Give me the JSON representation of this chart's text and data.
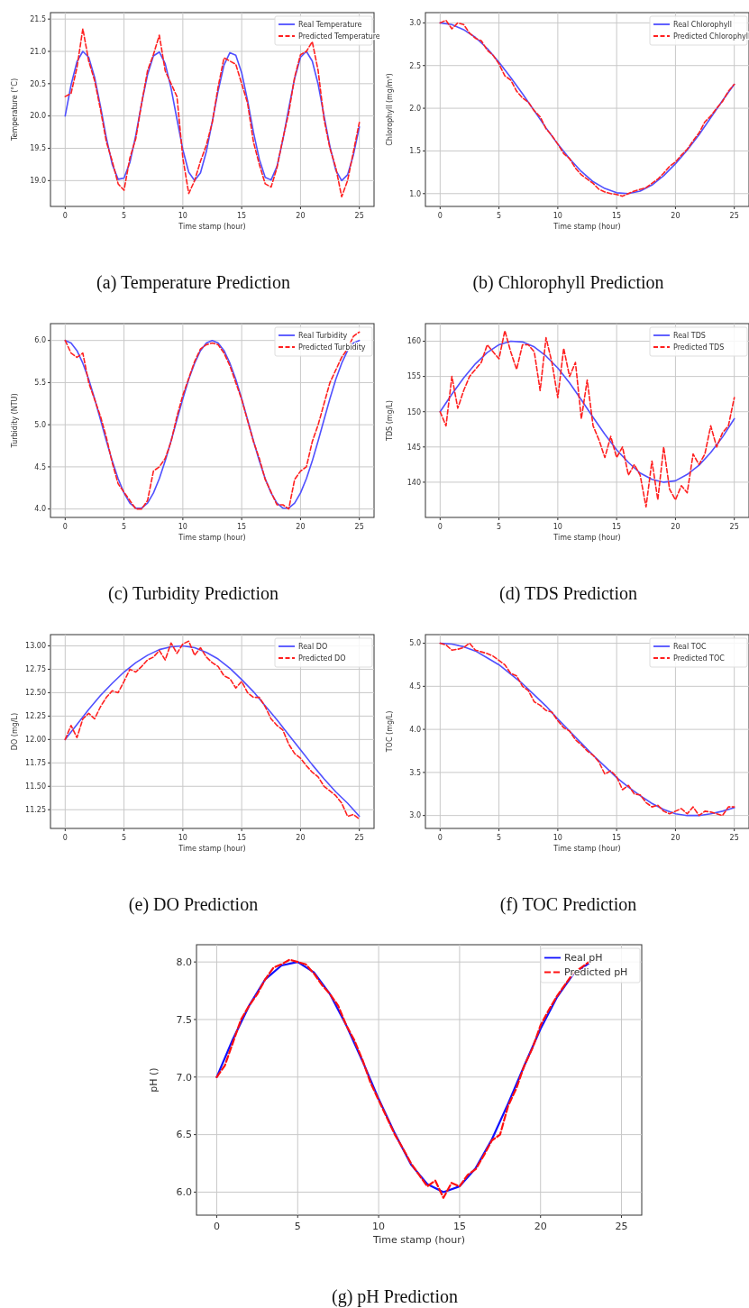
{
  "chart_data": [
    {
      "type": "line",
      "title": "(a)  Temperature Prediction",
      "xlabel": "Time stamp (hour)",
      "ylabel": "Temperature (°C)",
      "xlim": [
        -1.25,
        26.25
      ],
      "xticks": [
        0,
        5,
        10,
        15,
        20,
        25
      ],
      "ylim": [
        18.6,
        21.6
      ],
      "yticks": [
        {
          "value": 19,
          "label": "19.0"
        },
        19.5,
        {
          "value": 20,
          "label": "20.0"
        },
        20.5,
        {
          "value": 21,
          "label": "21.0"
        },
        21.5
      ],
      "grid": true,
      "legend": "top right",
      "series": [
        {
          "name": "Real Temperature",
          "color": "#5050ff",
          "line_style": "solid",
          "x": [
            0,
            0.5,
            1,
            1.5,
            2,
            2.5,
            3,
            3.5,
            4,
            4.5,
            5,
            5.5,
            6,
            6.5,
            7,
            7.5,
            8,
            8.5,
            9,
            9.5,
            10,
            10.5,
            11,
            11.5,
            12,
            12.5,
            13,
            13.5,
            14,
            14.5,
            15,
            15.5,
            16,
            16.5,
            17,
            17.5,
            18,
            18.5,
            19,
            19.5,
            20,
            20.5,
            21,
            21.5,
            22,
            22.5,
            23,
            23.5,
            24,
            24.5,
            25
          ],
          "values": [
            20.0,
            20.48,
            20.84,
            21.0,
            20.91,
            20.6,
            20.15,
            19.66,
            19.25,
            19.02,
            19.04,
            19.28,
            19.7,
            20.2,
            20.64,
            20.93,
            20.99,
            20.81,
            20.43,
            19.95,
            19.48,
            19.13,
            19.0,
            19.12,
            19.45,
            19.91,
            20.39,
            20.79,
            20.98,
            20.94,
            20.67,
            20.24,
            19.75,
            19.33,
            19.05,
            19.01,
            19.22,
            19.63,
            20.12,
            20.58,
            20.91,
            21.0,
            20.85,
            20.49,
            20.0,
            19.53,
            19.16,
            19.0,
            19.09,
            19.4,
            19.83
          ]
        },
        {
          "name": "Predicted Temperature",
          "color": "#ff2020",
          "line_style": "dashed",
          "x": [
            0,
            0.5,
            1,
            1.5,
            2,
            2.5,
            3,
            3.5,
            4,
            4.5,
            5,
            5.5,
            6,
            6.5,
            7,
            7.5,
            8,
            8.5,
            9,
            9.5,
            10,
            10.5,
            11,
            11.5,
            12,
            12.5,
            13,
            13.5,
            14,
            14.5,
            15,
            15.5,
            16,
            16.5,
            17,
            17.5,
            18,
            18.5,
            19,
            19.5,
            20,
            20.5,
            21,
            21.5,
            22,
            22.5,
            23,
            23.5,
            24,
            24.5,
            25
          ],
          "values": [
            20.3,
            20.35,
            20.75,
            21.35,
            20.85,
            20.55,
            20.1,
            19.6,
            19.3,
            18.95,
            18.85,
            19.35,
            19.65,
            20.2,
            20.7,
            20.95,
            21.25,
            20.7,
            20.5,
            20.3,
            19.35,
            18.8,
            19.0,
            19.3,
            19.55,
            19.9,
            20.45,
            20.9,
            20.85,
            20.8,
            20.5,
            20.2,
            19.6,
            19.25,
            18.95,
            18.9,
            19.2,
            19.65,
            20.05,
            20.6,
            20.95,
            21.0,
            21.15,
            20.7,
            19.95,
            19.5,
            19.2,
            18.75,
            19.0,
            19.45,
            19.9
          ]
        }
      ]
    },
    {
      "type": "line",
      "title": "(b) Chlorophyll Prediction",
      "xlabel": "Time stamp (hour)",
      "ylabel": "Chlorophyll (mg/m³)",
      "xlim": [
        -1.25,
        26.25
      ],
      "xticks": [
        0,
        5,
        10,
        15,
        20,
        25
      ],
      "ylim": [
        0.85,
        3.12
      ],
      "yticks": [
        {
          "value": 1,
          "label": "1.0"
        },
        1.5,
        {
          "value": 2,
          "label": "2.0"
        },
        2.5,
        {
          "value": 3,
          "label": "3.0"
        }
      ],
      "grid": true,
      "legend": "top right",
      "series": [
        {
          "name": "Real Chlorophyll",
          "color": "#5050ff",
          "line_style": "solid",
          "x": [
            0,
            1,
            2,
            3,
            4,
            5,
            6,
            7,
            8,
            9,
            10,
            11,
            12,
            13,
            14,
            15,
            16,
            17,
            18,
            19,
            20,
            21,
            22,
            23,
            24,
            25
          ],
          "values": [
            3.0,
            2.98,
            2.92,
            2.83,
            2.7,
            2.54,
            2.36,
            2.17,
            1.97,
            1.77,
            1.58,
            1.41,
            1.26,
            1.14,
            1.06,
            1.01,
            1.0,
            1.03,
            1.1,
            1.21,
            1.35,
            1.51,
            1.69,
            1.89,
            2.09,
            2.28
          ]
        },
        {
          "name": "Predicted Chlorophyll",
          "color": "#ff2020",
          "line_style": "dashed",
          "x": [
            0,
            0.5,
            1,
            1.5,
            2,
            2.5,
            3,
            3.5,
            4,
            4.5,
            5,
            5.5,
            6,
            6.5,
            7,
            7.5,
            8,
            8.5,
            9,
            9.5,
            10,
            10.5,
            11,
            11.5,
            12,
            12.5,
            13,
            13.5,
            14,
            14.5,
            15,
            15.5,
            16,
            16.5,
            17,
            17.5,
            18,
            18.5,
            19,
            19.5,
            20,
            20.5,
            21,
            21.5,
            22,
            22.5,
            23,
            23.5,
            24,
            24.5,
            25
          ],
          "values": [
            3.0,
            3.03,
            2.93,
            3.0,
            2.98,
            2.88,
            2.82,
            2.79,
            2.68,
            2.62,
            2.52,
            2.38,
            2.33,
            2.2,
            2.12,
            2.07,
            1.97,
            1.9,
            1.76,
            1.68,
            1.58,
            1.47,
            1.41,
            1.3,
            1.22,
            1.17,
            1.12,
            1.05,
            1.02,
            1.0,
            0.99,
            0.97,
            1.0,
            1.03,
            1.05,
            1.07,
            1.12,
            1.17,
            1.24,
            1.32,
            1.37,
            1.45,
            1.52,
            1.62,
            1.71,
            1.84,
            1.91,
            2.0,
            2.08,
            2.2,
            2.28
          ]
        }
      ]
    },
    {
      "type": "line",
      "title": "(c) Turbidity Prediction",
      "xlabel": "Time stamp (hour)",
      "ylabel": "Turbidity (NTU)",
      "xlim": [
        -1.25,
        26.25
      ],
      "xticks": [
        0,
        5,
        10,
        15,
        20,
        25
      ],
      "ylim": [
        3.9,
        6.2
      ],
      "yticks": [
        {
          "value": 4,
          "label": "4.0"
        },
        4.5,
        {
          "value": 5,
          "label": "5.0"
        },
        5.5,
        {
          "value": 6,
          "label": "6.0"
        }
      ],
      "grid": true,
      "legend": "top right",
      "series": [
        {
          "name": "Real Turbidity",
          "color": "#5050ff",
          "line_style": "solid",
          "x": [
            0,
            0.5,
            1,
            1.5,
            2,
            2.5,
            3,
            3.5,
            4,
            4.5,
            5,
            5.5,
            6,
            6.5,
            7,
            7.5,
            8,
            8.5,
            9,
            9.5,
            10,
            10.5,
            11,
            11.5,
            12,
            12.5,
            13,
            13.5,
            14,
            14.5,
            15,
            15.5,
            16,
            16.5,
            17,
            17.5,
            18,
            18.5,
            19,
            19.5,
            20,
            20.5,
            21,
            21.5,
            22,
            22.5,
            23,
            23.5,
            24,
            24.5,
            25
          ],
          "values": [
            6.0,
            5.97,
            5.88,
            5.73,
            5.54,
            5.31,
            5.06,
            4.81,
            4.57,
            4.36,
            4.19,
            4.07,
            4.01,
            4.01,
            4.07,
            4.19,
            4.36,
            4.57,
            4.81,
            5.06,
            5.31,
            5.54,
            5.73,
            5.88,
            5.97,
            6.0,
            5.97,
            5.88,
            5.73,
            5.54,
            5.31,
            5.06,
            4.81,
            4.57,
            4.36,
            4.19,
            4.07,
            4.01,
            4.01,
            4.07,
            4.19,
            4.36,
            4.57,
            4.81,
            5.06,
            5.31,
            5.54,
            5.73,
            5.88,
            5.97,
            6.0
          ]
        },
        {
          "name": "Predicted Turbidity",
          "color": "#ff2020",
          "line_style": "dashed",
          "x": [
            0,
            0.5,
            1,
            1.5,
            2,
            2.5,
            3,
            3.5,
            4,
            4.5,
            5,
            5.5,
            6,
            6.5,
            7,
            7.5,
            8,
            8.5,
            9,
            9.5,
            10,
            10.5,
            11,
            11.5,
            12,
            12.5,
            13,
            13.5,
            14,
            14.5,
            15,
            15.5,
            16,
            16.5,
            17,
            17.5,
            18,
            18.5,
            19,
            19.5,
            20,
            20.5,
            21,
            21.5,
            22,
            22.5,
            23,
            23.5,
            24,
            24.5,
            25
          ],
          "values": [
            6.0,
            5.85,
            5.8,
            5.85,
            5.5,
            5.3,
            5.1,
            4.85,
            4.55,
            4.3,
            4.2,
            4.1,
            4.0,
            4.0,
            4.1,
            4.45,
            4.5,
            4.6,
            4.8,
            5.1,
            5.35,
            5.55,
            5.75,
            5.9,
            5.95,
            5.97,
            5.95,
            5.85,
            5.7,
            5.5,
            5.3,
            5.05,
            4.8,
            4.6,
            4.35,
            4.2,
            4.05,
            4.05,
            4.0,
            4.35,
            4.45,
            4.5,
            4.8,
            5.0,
            5.25,
            5.5,
            5.65,
            5.8,
            5.9,
            6.05,
            6.1
          ]
        }
      ]
    },
    {
      "type": "line",
      "title": "(d) TDS Prediction",
      "xlabel": "Time stamp (hour)",
      "ylabel": "TDS (mg/L)",
      "xlim": [
        -1.25,
        26.25
      ],
      "xticks": [
        0,
        5,
        10,
        15,
        20,
        25
      ],
      "ylim": [
        135,
        162.5
      ],
      "yticks": [
        140,
        145,
        150,
        155,
        160
      ],
      "grid": true,
      "legend": "top right",
      "series": [
        {
          "name": "Real TDS",
          "color": "#5050ff",
          "line_style": "solid",
          "x": [
            0,
            1,
            2,
            3,
            4,
            5,
            6,
            7,
            8,
            9,
            10,
            11,
            12,
            13,
            14,
            15,
            16,
            17,
            18,
            19,
            20,
            21,
            22,
            23,
            24,
            25
          ],
          "values": [
            150,
            152.5,
            154.8,
            156.8,
            158.4,
            159.5,
            160,
            159.9,
            159.2,
            157.9,
            156.2,
            154.1,
            151.7,
            149.2,
            146.8,
            144.6,
            142.8,
            141.3,
            140.4,
            140,
            140.2,
            141.1,
            142.4,
            144.2,
            146.4,
            149
          ]
        },
        {
          "name": "Predicted TDS",
          "color": "#ff2020",
          "line_style": "dashed",
          "x": [
            0,
            0.5,
            1,
            1.5,
            2,
            2.5,
            3,
            3.5,
            4,
            4.5,
            5,
            5.5,
            6,
            6.5,
            7,
            7.5,
            8,
            8.5,
            9,
            9.5,
            10,
            10.5,
            11,
            11.5,
            12,
            12.5,
            13,
            13.5,
            14,
            14.5,
            15,
            15.5,
            16,
            16.5,
            17,
            17.5,
            18,
            18.5,
            19,
            19.5,
            20,
            20.5,
            21,
            21.5,
            22,
            22.5,
            23,
            23.5,
            24,
            24.5,
            25
          ],
          "values": [
            150,
            148,
            155,
            150.5,
            153,
            155,
            156,
            157,
            159.5,
            158.5,
            157.5,
            161.5,
            158.5,
            156,
            159.5,
            159.5,
            158.5,
            153,
            160.5,
            157,
            152,
            159,
            155,
            157,
            149,
            154.5,
            148,
            146,
            143.5,
            146.5,
            143.5,
            145,
            141,
            142.5,
            141,
            136.5,
            143,
            137.5,
            145,
            139,
            137.5,
            139.5,
            138.5,
            144,
            142.5,
            144,
            148,
            145,
            147,
            148,
            152
          ]
        }
      ]
    },
    {
      "type": "line",
      "title": "(e) DO Prediction",
      "xlabel": "Time stamp (hour)",
      "ylabel": "DO (mg/L)",
      "xlim": [
        -1.25,
        26.25
      ],
      "xticks": [
        0,
        5,
        10,
        15,
        20,
        25
      ],
      "ylim": [
        11.05,
        13.12
      ],
      "yticks": [
        11.25,
        {
          "value": 11.5,
          "label": "11.50"
        },
        11.75,
        {
          "value": 12,
          "label": "12.00"
        },
        12.25,
        {
          "value": 12.5,
          "label": "12.50"
        },
        12.75,
        {
          "value": 13,
          "label": "13.00"
        }
      ],
      "grid": true,
      "legend": "top right",
      "series": [
        {
          "name": "Real DO",
          "color": "#5050ff",
          "line_style": "solid",
          "x": [
            0,
            1,
            2,
            3,
            4,
            5,
            6,
            7,
            8,
            9,
            10,
            11,
            12,
            13,
            14,
            15,
            16,
            17,
            18,
            19,
            20,
            21,
            22,
            23,
            24,
            25
          ],
          "values": [
            12.0,
            12.16,
            12.32,
            12.47,
            12.6,
            12.72,
            12.82,
            12.9,
            12.96,
            12.99,
            13.0,
            12.98,
            12.93,
            12.86,
            12.76,
            12.64,
            12.51,
            12.36,
            12.21,
            12.05,
            11.89,
            11.73,
            11.58,
            11.44,
            11.32,
            11.18
          ]
        },
        {
          "name": "Predicted DO",
          "color": "#ff2020",
          "line_style": "dashed",
          "x": [
            0,
            0.5,
            1,
            1.5,
            2,
            2.5,
            3,
            3.5,
            4,
            4.5,
            5,
            5.5,
            6,
            6.5,
            7,
            7.5,
            8,
            8.5,
            9,
            9.5,
            10,
            10.5,
            11,
            11.5,
            12,
            12.5,
            13,
            13.5,
            14,
            14.5,
            15,
            15.5,
            16,
            16.5,
            17,
            17.5,
            18,
            18.5,
            19,
            19.5,
            20,
            20.5,
            21,
            21.5,
            22,
            22.5,
            23,
            23.5,
            24,
            24.5,
            25
          ],
          "values": [
            12.0,
            12.15,
            12.02,
            12.22,
            12.28,
            12.22,
            12.35,
            12.45,
            12.52,
            12.5,
            12.62,
            12.75,
            12.72,
            12.78,
            12.85,
            12.88,
            12.95,
            12.85,
            13.03,
            12.92,
            13.02,
            13.05,
            12.9,
            12.98,
            12.88,
            12.82,
            12.78,
            12.68,
            12.65,
            12.55,
            12.62,
            12.5,
            12.45,
            12.45,
            12.35,
            12.22,
            12.15,
            12.1,
            11.95,
            11.85,
            11.8,
            11.72,
            11.65,
            11.6,
            11.5,
            11.45,
            11.4,
            11.32,
            11.18,
            11.2,
            11.15
          ]
        }
      ]
    },
    {
      "type": "line",
      "title": "(f) TOC Prediction",
      "xlabel": "Time stamp (hour)",
      "ylabel": "TOC (mg/L)",
      "xlim": [
        -1.25,
        26.25
      ],
      "xticks": [
        0,
        5,
        10,
        15,
        20,
        25
      ],
      "ylim": [
        2.85,
        5.1
      ],
      "yticks": [
        {
          "value": 3,
          "label": "3.0"
        },
        3.5,
        {
          "value": 4,
          "label": "4.0"
        },
        4.5,
        {
          "value": 5,
          "label": "5.0"
        }
      ],
      "grid": true,
      "legend": "top right",
      "series": [
        {
          "name": "Real TOC",
          "color": "#5050ff",
          "line_style": "solid",
          "x": [
            0,
            1,
            2,
            3,
            4,
            5,
            6,
            7,
            8,
            9,
            10,
            11,
            12,
            13,
            14,
            15,
            16,
            17,
            18,
            19,
            20,
            21,
            22,
            23,
            24,
            25
          ],
          "values": [
            5.0,
            4.99,
            4.96,
            4.91,
            4.83,
            4.75,
            4.64,
            4.53,
            4.4,
            4.27,
            4.12,
            3.98,
            3.84,
            3.7,
            3.57,
            3.44,
            3.33,
            3.23,
            3.14,
            3.07,
            3.02,
            3.0,
            3.0,
            3.02,
            3.05,
            3.09
          ]
        },
        {
          "name": "Predicted TOC",
          "color": "#ff2020",
          "line_style": "dashed",
          "x": [
            0,
            0.5,
            1,
            1.5,
            2,
            2.5,
            3,
            3.5,
            4,
            4.5,
            5,
            5.5,
            6,
            6.5,
            7,
            7.5,
            8,
            8.5,
            9,
            9.5,
            10,
            10.5,
            11,
            11.5,
            12,
            12.5,
            13,
            13.5,
            14,
            14.5,
            15,
            15.5,
            16,
            16.5,
            17,
            17.5,
            18,
            18.5,
            19,
            19.5,
            20,
            20.5,
            21,
            21.5,
            22,
            22.5,
            23,
            23.5,
            24,
            24.5,
            25
          ],
          "values": [
            5.0,
            4.98,
            4.92,
            4.93,
            4.95,
            5.0,
            4.92,
            4.9,
            4.88,
            4.85,
            4.8,
            4.75,
            4.65,
            4.62,
            4.5,
            4.45,
            4.32,
            4.28,
            4.22,
            4.2,
            4.1,
            4.02,
            3.98,
            3.88,
            3.82,
            3.75,
            3.7,
            3.62,
            3.48,
            3.52,
            3.45,
            3.3,
            3.35,
            3.25,
            3.24,
            3.15,
            3.1,
            3.12,
            3.05,
            3.02,
            3.05,
            3.08,
            3.02,
            3.1,
            3.0,
            3.05,
            3.04,
            3.02,
            3.0,
            3.1,
            3.1
          ]
        }
      ]
    },
    {
      "type": "line",
      "title": "(g) pH Prediction",
      "xlabel": "Time stamp (hour)",
      "ylabel": "pH ()",
      "xlim": [
        -1.25,
        26.25
      ],
      "xticks": [
        0,
        5,
        10,
        15,
        20,
        25
      ],
      "ylim": [
        5.8,
        8.15
      ],
      "yticks": [
        {
          "value": 6,
          "label": "6.0"
        },
        6.5,
        {
          "value": 7,
          "label": "7.0"
        },
        7.5,
        {
          "value": 8,
          "label": "8.0"
        }
      ],
      "grid": true,
      "legend": "top right",
      "series": [
        {
          "name": "Real pH",
          "color": "#1010ff",
          "line_style": "solid",
          "x": [
            0,
            1,
            2,
            3,
            4,
            5,
            6,
            7,
            8,
            9,
            10,
            11,
            12,
            13,
            14,
            15,
            16,
            17,
            18,
            19,
            20,
            21,
            22,
            23
          ],
          "values": [
            7.0,
            7.33,
            7.62,
            7.85,
            7.97,
            8.0,
            7.91,
            7.72,
            7.45,
            7.14,
            6.81,
            6.51,
            6.24,
            6.07,
            6.0,
            6.05,
            6.21,
            6.46,
            6.77,
            7.1,
            7.42,
            7.69,
            7.89,
            7.99
          ]
        },
        {
          "name": "Predicted pH",
          "color": "#ff1010",
          "line_style": "dashed",
          "x": [
            0,
            0.5,
            1,
            1.5,
            2,
            2.5,
            3,
            3.5,
            4,
            4.5,
            5,
            5.5,
            6,
            6.5,
            7,
            7.5,
            8,
            8.5,
            9,
            9.5,
            10,
            10.5,
            11,
            11.5,
            12,
            12.5,
            13,
            13.5,
            14,
            14.5,
            15,
            15.5,
            16,
            16.5,
            17,
            17.5,
            18,
            18.5,
            19,
            19.5,
            20,
            20.5,
            21,
            21.5,
            22,
            22.5,
            23
          ],
          "values": [
            7.0,
            7.1,
            7.3,
            7.5,
            7.62,
            7.72,
            7.85,
            7.95,
            7.98,
            8.02,
            8.0,
            7.98,
            7.9,
            7.8,
            7.72,
            7.62,
            7.45,
            7.32,
            7.15,
            6.95,
            6.8,
            6.65,
            6.5,
            6.38,
            6.25,
            6.15,
            6.05,
            6.1,
            5.95,
            6.08,
            6.05,
            6.15,
            6.2,
            6.32,
            6.45,
            6.5,
            6.75,
            6.9,
            7.1,
            7.25,
            7.45,
            7.58,
            7.7,
            7.8,
            7.9,
            7.95,
            8.0
          ]
        }
      ]
    }
  ]
}
